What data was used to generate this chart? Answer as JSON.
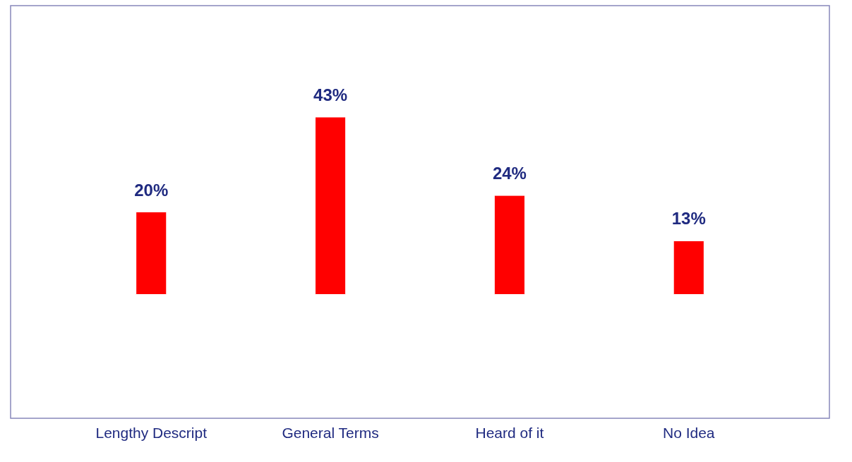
{
  "chart_data": {
    "type": "bar",
    "categories": [
      "Lengthy Descript",
      "General Terms",
      "Heard of it",
      "No Idea"
    ],
    "values": [
      20,
      43,
      24,
      13
    ],
    "value_labels": [
      "20%",
      "43%",
      "24%",
      "13%"
    ],
    "color": "#ff0000",
    "grid": false
  }
}
